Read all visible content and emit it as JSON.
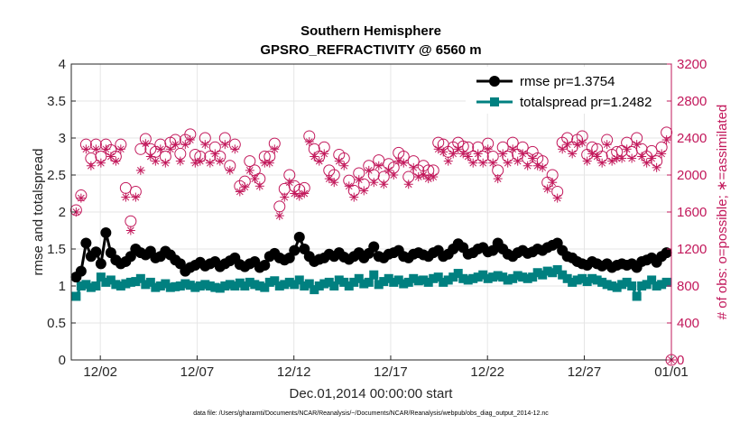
{
  "chart_data": {
    "type": "line",
    "title": "Southern Hemisphere",
    "subtitle": "GPSRO_REFRACTIVITY @ 6560 m",
    "xlabel": "Dec.01,2014 00:00:00 start",
    "ylabel_left": "rmse and totalspread",
    "ylabel_right": "# of obs: o=possible; ∗=assimilated",
    "footnote": "data file: /Users/gharamti/Documents/NCAR/Reanalysis/~/Documents/NCAR/Reanalysis/webpub/obs_diag_output_2014-12.nc",
    "x_range": [
      0.5,
      31.5
    ],
    "ylim_left": [
      0,
      4
    ],
    "ylim_right": [
      0,
      3200
    ],
    "x_ticks": [
      {
        "pos": 2,
        "label": "12/02"
      },
      {
        "pos": 7,
        "label": "12/07"
      },
      {
        "pos": 12,
        "label": "12/12"
      },
      {
        "pos": 17,
        "label": "12/17"
      },
      {
        "pos": 22,
        "label": "12/22"
      },
      {
        "pos": 27,
        "label": "12/27"
      },
      {
        "pos": 32,
        "label": "01/01"
      }
    ],
    "y_ticks_left": [
      "0",
      "0.5",
      "1",
      "1.5",
      "2",
      "2.5",
      "3",
      "3.5",
      "4"
    ],
    "y_ticks_left_values": [
      0,
      0.5,
      1,
      1.5,
      2,
      2.5,
      3,
      3.5,
      4
    ],
    "y_ticks_right": [
      "0",
      "400",
      "800",
      "1200",
      "1600",
      "2000",
      "2400",
      "2800",
      "3200"
    ],
    "y_ticks_right_values": [
      0,
      400,
      800,
      1200,
      1600,
      2000,
      2400,
      2800,
      3200
    ],
    "legend": [
      {
        "label": "rmse pr=1.3754",
        "color": "#000000",
        "marker": "circle"
      },
      {
        "label": "totalspread pr=1.2482",
        "color": "#008080",
        "marker": "square"
      }
    ],
    "colors": {
      "rmse": "#000000",
      "totalspread": "#008080",
      "obs": "#c2185b",
      "grid": "#e6e6e6"
    },
    "series": [
      {
        "name": "rmse",
        "values": [
          1.12,
          1.2,
          1.58,
          1.4,
          1.46,
          1.3,
          1.72,
          1.45,
          1.35,
          1.3,
          1.33,
          1.4,
          1.5,
          1.45,
          1.42,
          1.47,
          1.38,
          1.4,
          1.47,
          1.42,
          1.35,
          1.3,
          1.2,
          1.25,
          1.28,
          1.32,
          1.27,
          1.3,
          1.33,
          1.26,
          1.3,
          1.34,
          1.38,
          1.29,
          1.26,
          1.3,
          1.33,
          1.25,
          1.28,
          1.4,
          1.44,
          1.38,
          1.35,
          1.38,
          1.48,
          1.66,
          1.5,
          1.4,
          1.33,
          1.36,
          1.38,
          1.43,
          1.4,
          1.45,
          1.39,
          1.36,
          1.4,
          1.45,
          1.38,
          1.44,
          1.53,
          1.4,
          1.38,
          1.43,
          1.45,
          1.48,
          1.4,
          1.38,
          1.43,
          1.45,
          1.42,
          1.4,
          1.45,
          1.48,
          1.4,
          1.43,
          1.5,
          1.57,
          1.52,
          1.43,
          1.45,
          1.5,
          1.52,
          1.46,
          1.48,
          1.58,
          1.5,
          1.43,
          1.4,
          1.45,
          1.48,
          1.44,
          1.46,
          1.5,
          1.48,
          1.52,
          1.55,
          1.58,
          1.48,
          1.4,
          1.38,
          1.33,
          1.3,
          1.28,
          1.33,
          1.3,
          1.27,
          1.3,
          1.25,
          1.28,
          1.3,
          1.28,
          1.3,
          1.25,
          1.33,
          1.35,
          1.38,
          1.32,
          1.4,
          1.45
        ]
      },
      {
        "name": "totalspread",
        "values": [
          0.86,
          1.0,
          1.02,
          0.98,
          1.0,
          1.12,
          1.05,
          1.08,
          1.02,
          1.0,
          1.03,
          1.05,
          1.06,
          1.1,
          1.02,
          1.05,
          0.98,
          1.0,
          1.03,
          0.98,
          0.99,
          1.0,
          1.03,
          1.01,
          0.98,
          1.0,
          1.02,
          1.0,
          0.98,
          0.97,
          1.0,
          1.02,
          1.0,
          1.04,
          1.0,
          1.05,
          1.02,
          1.0,
          0.98,
          1.05,
          1.07,
          1.0,
          1.02,
          1.05,
          1.02,
          1.08,
          1.0,
          1.03,
          0.95,
          1.0,
          1.03,
          1.05,
          1.0,
          1.08,
          1.05,
          1.0,
          1.05,
          1.1,
          1.03,
          1.05,
          1.15,
          1.02,
          1.06,
          1.1,
          1.05,
          1.08,
          1.03,
          1.05,
          1.1,
          1.07,
          1.08,
          1.05,
          1.1,
          1.12,
          1.05,
          1.08,
          1.12,
          1.17,
          1.1,
          1.08,
          1.1,
          1.12,
          1.15,
          1.1,
          1.12,
          1.14,
          1.12,
          1.08,
          1.1,
          1.14,
          1.12,
          1.1,
          1.12,
          1.18,
          1.15,
          1.2,
          1.18,
          1.22,
          1.15,
          1.1,
          1.05,
          1.08,
          1.1,
          1.06,
          1.1,
          1.08,
          1.05,
          1.02,
          1.0,
          0.98,
          1.02,
          1.05,
          1.0,
          0.86,
          1.0,
          1.02,
          1.08,
          1.0,
          1.02,
          1.05
        ]
      },
      {
        "name": "possible",
        "values": [
          1620,
          1780,
          2330,
          2180,
          2330,
          2200,
          2330,
          2270,
          2200,
          2330,
          1860,
          1500,
          1820,
          2280,
          2390,
          2280,
          2250,
          2330,
          2200,
          2350,
          2380,
          2230,
          2380,
          2440,
          2220,
          2200,
          2400,
          2200,
          2300,
          2200,
          2400,
          2100,
          2330,
          1880,
          1930,
          2150,
          2050,
          1960,
          2200,
          2200,
          2340,
          1660,
          1850,
          2000,
          1880,
          1840,
          1860,
          2420,
          2280,
          2200,
          2300,
          2050,
          2000,
          2220,
          2180,
          1940,
          1830,
          2020,
          1900,
          2100,
          2000,
          2160,
          1980,
          2120,
          2080,
          2240,
          2200,
          1980,
          2150,
          2050,
          2100,
          2050,
          2050,
          2350,
          2330,
          2250,
          2300,
          2350,
          2310,
          2300,
          2200,
          2300,
          2200,
          2340,
          2200,
          2050,
          2300,
          2200,
          2350,
          2220,
          2300,
          2180,
          2250,
          2180,
          2150,
          1920,
          2000,
          1820,
          2350,
          2400,
          2300,
          2380,
          2420,
          2220,
          2300,
          2280,
          2200,
          2380,
          2220,
          2250,
          2260,
          2350,
          2250,
          2400,
          2280,
          2200,
          2260,
          2150,
          2300,
          2460
        ]
      },
      {
        "name": "assimilated",
        "values": [
          1600,
          1750,
          2280,
          2100,
          2280,
          2130,
          2280,
          2200,
          2150,
          2280,
          1760,
          1400,
          1760,
          2050,
          2340,
          2200,
          2150,
          2280,
          2130,
          2280,
          2330,
          2150,
          2330,
          2380,
          2130,
          2150,
          2330,
          2130,
          2230,
          2150,
          2330,
          2050,
          2280,
          1820,
          1870,
          2050,
          1960,
          1880,
          2130,
          2130,
          2280,
          1560,
          1760,
          1920,
          1800,
          1770,
          1800,
          2360,
          2200,
          2150,
          2230,
          1960,
          1920,
          2150,
          2100,
          1880,
          1760,
          1950,
          1830,
          2050,
          1920,
          2100,
          1900,
          2050,
          2000,
          2150,
          2130,
          1900,
          2080,
          1980,
          2000,
          1960,
          1980,
          2280,
          2250,
          2150,
          2230,
          2280,
          2230,
          2200,
          2130,
          2230,
          2130,
          2280,
          2130,
          1960,
          2230,
          2130,
          2280,
          2150,
          2230,
          2100,
          2180,
          2100,
          2080,
          1850,
          1920,
          1750,
          2280,
          2330,
          2230,
          2330,
          2350,
          2150,
          2230,
          2200,
          2130,
          2330,
          2150,
          2180,
          2180,
          2280,
          2180,
          2330,
          2200,
          2130,
          2180,
          2080,
          2230,
          2380
        ]
      }
    ]
  }
}
